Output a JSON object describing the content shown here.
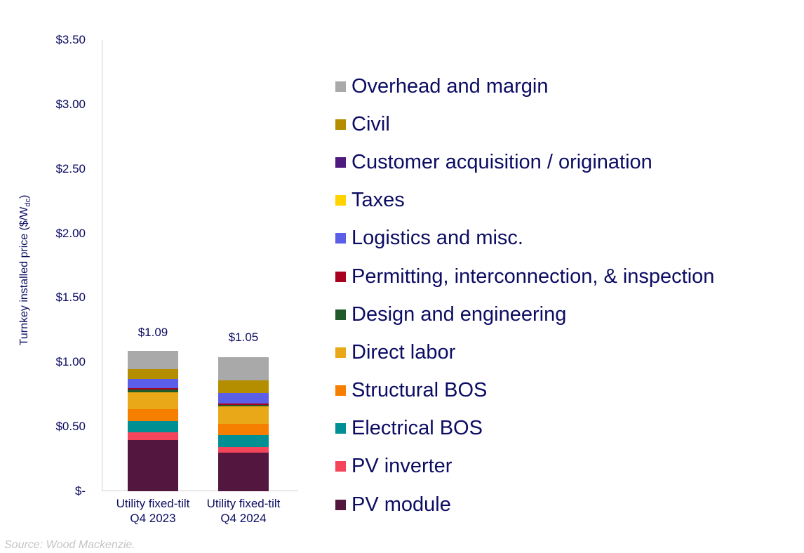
{
  "chart_data": {
    "type": "bar",
    "stacked": true,
    "title": "",
    "xlabel": "",
    "ylabel": "Turnkey installed price ($/Wdc)",
    "ylabel_main": "Turnkey installed price ($/W",
    "ylabel_sub": "dc",
    "ylabel_close": ")",
    "ylim": [
      0,
      3.5
    ],
    "yticks": [
      "$3.50",
      "$3.00",
      "$2.50",
      "$2.00",
      "$1.50",
      "$1.00",
      "$0.50",
      "$-"
    ],
    "ytick_values": [
      3.5,
      3.0,
      2.5,
      2.0,
      1.5,
      1.0,
      0.5,
      0
    ],
    "categories": [
      "Utility fixed-tilt Q4 2023",
      "Utility fixed-tilt Q4 2024"
    ],
    "category_lines": [
      [
        "Utility fixed-tilt",
        "Q4 2023"
      ],
      [
        "Utility fixed-tilt",
        "Q4 2024"
      ]
    ],
    "totals": [
      1.09,
      1.05
    ],
    "total_labels": [
      "$1.09",
      "$1.05"
    ],
    "legend_position": "right",
    "grid": false,
    "series": [
      {
        "name": "PV module",
        "color": "#52163f",
        "values": [
          0.4,
          0.3
        ]
      },
      {
        "name": "PV inverter",
        "color": "#f5455b",
        "values": [
          0.055,
          0.045
        ]
      },
      {
        "name": "Electrical BOS",
        "color": "#008f93",
        "values": [
          0.09,
          0.09
        ]
      },
      {
        "name": "Structural BOS",
        "color": "#f77f00",
        "values": [
          0.09,
          0.09
        ]
      },
      {
        "name": "Direct labor",
        "color": "#e9a817",
        "values": [
          0.135,
          0.135
        ]
      },
      {
        "name": "Design and engineering",
        "color": "#215a2a",
        "values": [
          0.02,
          0.01
        ]
      },
      {
        "name": "Permitting, interconnection, & inspection",
        "color": "#a8001f",
        "values": [
          0.01,
          0.01
        ]
      },
      {
        "name": "Logistics and misc.",
        "color": "#5b5ee6",
        "values": [
          0.07,
          0.08
        ]
      },
      {
        "name": "Taxes",
        "color": "#ffd200",
        "values": [
          0.0,
          0.0
        ]
      },
      {
        "name": "Customer acquisition / origination",
        "color": "#4e1a80",
        "values": [
          0.0,
          0.0
        ]
      },
      {
        "name": "Civil",
        "color": "#b58e00",
        "values": [
          0.08,
          0.1
        ]
      },
      {
        "name": "Overhead and margin",
        "color": "#a9a9a9",
        "values": [
          0.14,
          0.18
        ]
      }
    ],
    "legend_order": [
      "Overhead and margin",
      "Civil",
      "Customer acquisition / origination",
      "Taxes",
      "Logistics and misc.",
      "Permitting, interconnection, & inspection",
      "Design and engineering",
      "Direct labor",
      "Structural BOS",
      "Electrical BOS",
      "PV inverter",
      "PV module"
    ]
  },
  "source": "Source: Wood Mackenzie."
}
